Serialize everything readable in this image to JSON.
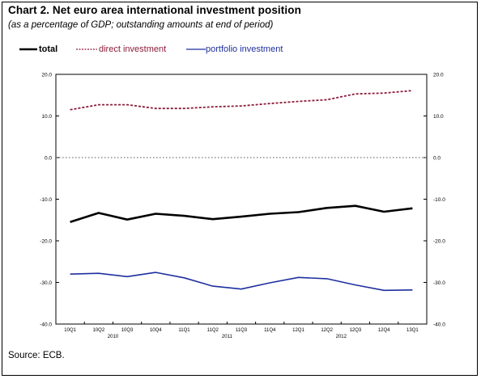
{
  "title": "Chart 2. Net euro area international investment position",
  "subtitle": "(as a percentage of GDP; outstanding amounts at end of period)",
  "source": "Source:  ECB.",
  "colors": {
    "total": "#000000",
    "direct": "#8b1c3a",
    "portfolio": "#1e2f9e",
    "zero_line": "#555555"
  },
  "chart_data": {
    "type": "line",
    "categories": [
      "10Q1",
      "10Q2",
      "10Q3",
      "10Q4",
      "11Q1",
      "11Q2",
      "11Q3",
      "11Q4",
      "12Q1",
      "12Q2",
      "12Q3",
      "12Q4",
      "13Q1"
    ],
    "year_labels": [
      {
        "label": "2010",
        "start": 0,
        "end": 3
      },
      {
        "label": "2011",
        "start": 4,
        "end": 7
      },
      {
        "label": "2012",
        "start": 8,
        "end": 11
      }
    ],
    "ylim": [
      -40,
      20
    ],
    "yticks": [
      20,
      10,
      0,
      -10,
      -20,
      -30,
      -40
    ],
    "ytick_labels": [
      "20.0",
      "10.0",
      "0.0",
      "-10.0",
      "-20.0",
      "-30.0",
      "-40.0"
    ],
    "grid": false,
    "legend_placement": "top-left",
    "series": [
      {
        "name": "total",
        "style": "solid-thick",
        "values": [
          -15.5,
          -13.3,
          -14.9,
          -13.5,
          -14.0,
          -14.8,
          -14.2,
          -13.5,
          -13.1,
          -12.1,
          -11.6,
          -13.0,
          -12.2
        ]
      },
      {
        "name": "direct investment",
        "style": "dashed",
        "values": [
          11.5,
          12.7,
          12.7,
          11.8,
          11.8,
          12.2,
          12.4,
          13.0,
          13.5,
          13.9,
          15.3,
          15.5,
          16.1
        ]
      },
      {
        "name": "portfolio investment",
        "style": "solid",
        "values": [
          -28.0,
          -27.8,
          -28.6,
          -27.6,
          -28.9,
          -30.9,
          -31.6,
          -30.1,
          -28.8,
          -29.1,
          -30.6,
          -31.9,
          -31.8
        ]
      }
    ]
  }
}
